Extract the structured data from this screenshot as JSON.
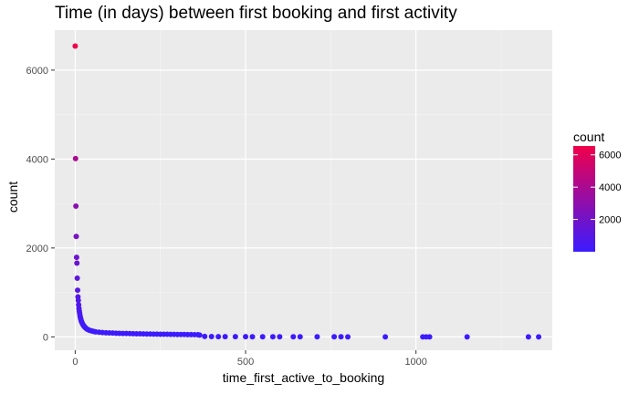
{
  "chart_data": {
    "type": "scatter",
    "title": "Time (in days) between first booking and first activity",
    "xlabel": "time_first_active_to_booking",
    "ylabel": "count",
    "xlim": [
      -60,
      1400
    ],
    "ylim": [
      -300,
      6900
    ],
    "x_ticks": [
      0,
      500,
      1000
    ],
    "y_ticks": [
      0,
      2000,
      4000,
      6000
    ],
    "grid": true,
    "background": "#ebebeb",
    "legend": {
      "title": "count",
      "position": "right",
      "type": "colorbar",
      "range": [
        1,
        6550
      ],
      "ticks": [
        2000,
        4000,
        6000
      ],
      "low_color": "#3b1bff",
      "high_color": "#f0004a"
    },
    "points": [
      {
        "x": 0,
        "y": 6540
      },
      {
        "x": 1,
        "y": 4010
      },
      {
        "x": 2,
        "y": 2940
      },
      {
        "x": 3,
        "y": 2260
      },
      {
        "x": 4,
        "y": 1790
      },
      {
        "x": 5,
        "y": 1660
      },
      {
        "x": 6,
        "y": 1320
      },
      {
        "x": 7,
        "y": 1050
      },
      {
        "x": 8,
        "y": 900
      },
      {
        "x": 9,
        "y": 820
      },
      {
        "x": 10,
        "y": 720
      },
      {
        "x": 11,
        "y": 640
      },
      {
        "x": 12,
        "y": 580
      },
      {
        "x": 13,
        "y": 530
      },
      {
        "x": 14,
        "y": 480
      },
      {
        "x": 15,
        "y": 440
      },
      {
        "x": 16,
        "y": 410
      },
      {
        "x": 17,
        "y": 380
      },
      {
        "x": 18,
        "y": 355
      },
      {
        "x": 19,
        "y": 335
      },
      {
        "x": 20,
        "y": 315
      },
      {
        "x": 22,
        "y": 285
      },
      {
        "x": 24,
        "y": 260
      },
      {
        "x": 26,
        "y": 240
      },
      {
        "x": 28,
        "y": 220
      },
      {
        "x": 30,
        "y": 205
      },
      {
        "x": 33,
        "y": 185
      },
      {
        "x": 36,
        "y": 170
      },
      {
        "x": 40,
        "y": 155
      },
      {
        "x": 45,
        "y": 140
      },
      {
        "x": 50,
        "y": 130
      },
      {
        "x": 55,
        "y": 120
      },
      {
        "x": 60,
        "y": 112
      },
      {
        "x": 70,
        "y": 104
      },
      {
        "x": 80,
        "y": 98
      },
      {
        "x": 90,
        "y": 93
      },
      {
        "x": 100,
        "y": 89
      },
      {
        "x": 110,
        "y": 86
      },
      {
        "x": 120,
        "y": 83
      },
      {
        "x": 130,
        "y": 80
      },
      {
        "x": 140,
        "y": 78
      },
      {
        "x": 150,
        "y": 76
      },
      {
        "x": 160,
        "y": 74
      },
      {
        "x": 170,
        "y": 72
      },
      {
        "x": 180,
        "y": 70
      },
      {
        "x": 190,
        "y": 68
      },
      {
        "x": 200,
        "y": 66
      },
      {
        "x": 210,
        "y": 65
      },
      {
        "x": 220,
        "y": 63
      },
      {
        "x": 230,
        "y": 62
      },
      {
        "x": 240,
        "y": 61
      },
      {
        "x": 250,
        "y": 60
      },
      {
        "x": 260,
        "y": 59
      },
      {
        "x": 270,
        "y": 58
      },
      {
        "x": 280,
        "y": 57
      },
      {
        "x": 290,
        "y": 56
      },
      {
        "x": 300,
        "y": 55
      },
      {
        "x": 310,
        "y": 54
      },
      {
        "x": 320,
        "y": 53
      },
      {
        "x": 330,
        "y": 52
      },
      {
        "x": 340,
        "y": 51
      },
      {
        "x": 350,
        "y": 50
      },
      {
        "x": 360,
        "y": 48
      },
      {
        "x": 365,
        "y": 40
      },
      {
        "x": 380,
        "y": 10
      },
      {
        "x": 400,
        "y": 8
      },
      {
        "x": 420,
        "y": 6
      },
      {
        "x": 440,
        "y": 5
      },
      {
        "x": 470,
        "y": 4
      },
      {
        "x": 500,
        "y": 4
      },
      {
        "x": 520,
        "y": 3
      },
      {
        "x": 550,
        "y": 3
      },
      {
        "x": 580,
        "y": 3
      },
      {
        "x": 600,
        "y": 2
      },
      {
        "x": 640,
        "y": 2
      },
      {
        "x": 660,
        "y": 2
      },
      {
        "x": 710,
        "y": 2
      },
      {
        "x": 760,
        "y": 2
      },
      {
        "x": 780,
        "y": 2
      },
      {
        "x": 800,
        "y": 1
      },
      {
        "x": 910,
        "y": 1
      },
      {
        "x": 1020,
        "y": 1
      },
      {
        "x": 1030,
        "y": 1
      },
      {
        "x": 1040,
        "y": 1
      },
      {
        "x": 1150,
        "y": 1
      },
      {
        "x": 1330,
        "y": 1
      },
      {
        "x": 1360,
        "y": 1
      }
    ]
  }
}
